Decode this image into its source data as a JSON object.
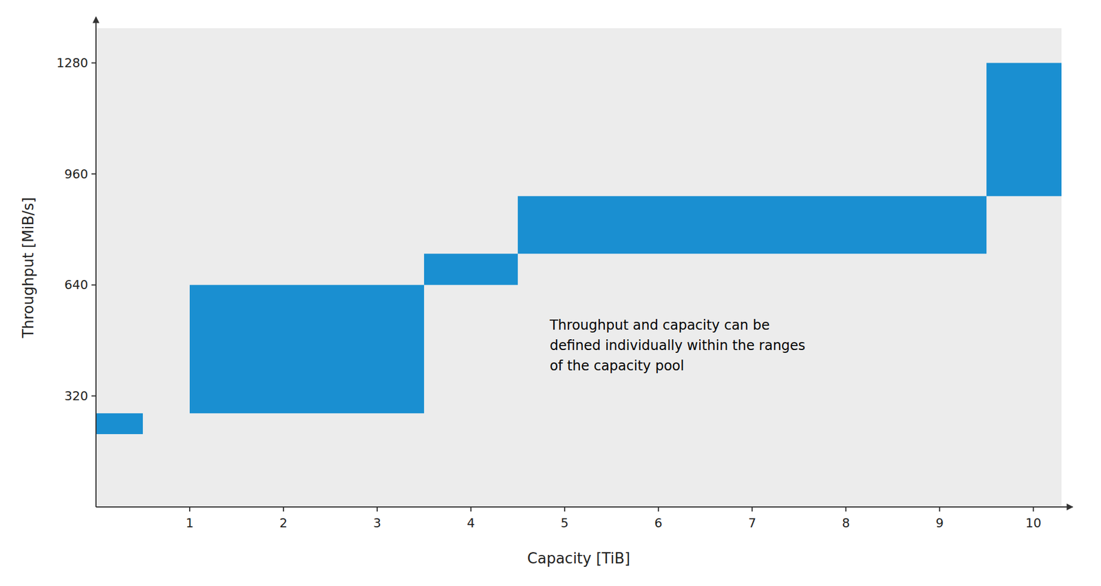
{
  "chart_data": {
    "type": "range_bar",
    "x": [
      0,
      1.0,
      3.5,
      4.5,
      9.5
    ],
    "x_end": [
      0.5,
      3.5,
      4.5,
      9.5,
      10.3
    ],
    "low": [
      210,
      270,
      640,
      730,
      896
    ],
    "values": [
      270,
      640,
      730,
      896,
      1280
    ],
    "color": "#1a8fd1",
    "xlabel": "Capacity [TiB]",
    "ylabel": "Throughput [MiB/s]",
    "annotation": "Throughput and capacity can be\ndefined individually within the ranges\nof the capacity pool",
    "xlim": [
      0,
      10.3
    ],
    "ylim": [
      0,
      1380
    ],
    "xticks": [
      1,
      2,
      3,
      4,
      5,
      6,
      7,
      8,
      9,
      10
    ],
    "yticks": [
      320,
      640,
      960,
      1280
    ],
    "grid": false
  }
}
